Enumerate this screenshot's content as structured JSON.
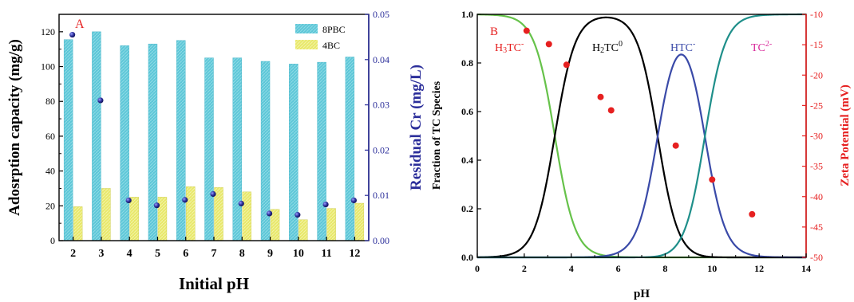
{
  "colors": {
    "bar_8pbc": "#5ec7d8",
    "bar_4bc": "#e8e86a",
    "residual_marker": "#2b2e9a",
    "right_axis_a": "#2b2e9a",
    "species_h3tc": "#66c24a",
    "species_h2tc": "#000000",
    "species_htc": "#3a4aa8",
    "species_tc2": "#1f8f8a",
    "zeta_points": "#e62020",
    "label_red": "#e62020",
    "label_pink": "#d8289a",
    "label_blue": "#3a4aa8"
  },
  "chart_data": [
    {
      "type": "bar",
      "panel_label": "A",
      "xlabel": "Initial pH",
      "ylabel": "Adosrption capacity (mg/g)",
      "y2label": "Residual Cr (mg/L)",
      "categories": [
        "2",
        "3",
        "4",
        "5",
        "6",
        "7",
        "8",
        "9",
        "10",
        "11",
        "12"
      ],
      "ylim": [
        0,
        130
      ],
      "yticks": [
        "0",
        "20",
        "40",
        "60",
        "80",
        "100",
        "120"
      ],
      "y2lim": [
        0,
        0.05
      ],
      "y2ticks": [
        "0.00",
        "0.01",
        "0.02",
        "0.03",
        "0.04",
        "0.05"
      ],
      "series": [
        {
          "name": "8PBC",
          "values": [
            115.5,
            120,
            112,
            113,
            115,
            105,
            105,
            103,
            101.5,
            102.5,
            105.5
          ]
        },
        {
          "name": "4BC",
          "values": [
            19.5,
            30,
            25,
            25,
            31,
            30.5,
            28,
            18,
            12,
            18.5,
            21.5
          ]
        }
      ],
      "residual_cr": [
        0.0455,
        0.031,
        0.0089,
        0.0078,
        0.009,
        0.0103,
        0.0082,
        0.006,
        0.0057,
        0.008,
        0.0089
      ],
      "legend": "top-right",
      "grid": false
    },
    {
      "type": "line",
      "panel_label": "B",
      "xlabel": "pH",
      "ylabel": "Fraction of  TC Species",
      "y2label": "Zeta Potential (mV)",
      "xlim": [
        0,
        14
      ],
      "xticks": [
        "0",
        "2",
        "4",
        "6",
        "8",
        "10",
        "12",
        "14"
      ],
      "ylim": [
        0,
        1
      ],
      "yticks": [
        "0.0",
        "0.2",
        "0.4",
        "0.6",
        "0.8",
        "1.0"
      ],
      "y2lim": [
        -50,
        -10
      ],
      "y2ticks": [
        "-10",
        "-15",
        "-20",
        "-25",
        "-30",
        "-35",
        "-40",
        "-45",
        "-50"
      ],
      "pKa": [
        3.3,
        7.68,
        9.69
      ],
      "species_labels": [
        {
          "key": "h3tc",
          "base": "H",
          "sub": "3",
          "mid": "TC",
          "sup": "-"
        },
        {
          "key": "h2tc",
          "base": "H",
          "sub": "2",
          "mid": "TC",
          "sup": "0"
        },
        {
          "key": "htc",
          "base": "",
          "sub": "",
          "mid": "HTC",
          "sup": "-"
        },
        {
          "key": "tc2",
          "base": "",
          "sub": "",
          "mid": "TC",
          "sup": "2-"
        }
      ],
      "zeta_points": [
        {
          "x": 2.1,
          "y": -12.7
        },
        {
          "x": 3.05,
          "y": -14.9
        },
        {
          "x": 3.8,
          "y": -18.3
        },
        {
          "x": 5.25,
          "y": -23.6
        },
        {
          "x": 5.7,
          "y": -25.8
        },
        {
          "x": 8.45,
          "y": -31.6
        },
        {
          "x": 10.0,
          "y": -37.2
        },
        {
          "x": 11.7,
          "y": -42.9
        }
      ],
      "grid": false
    }
  ]
}
